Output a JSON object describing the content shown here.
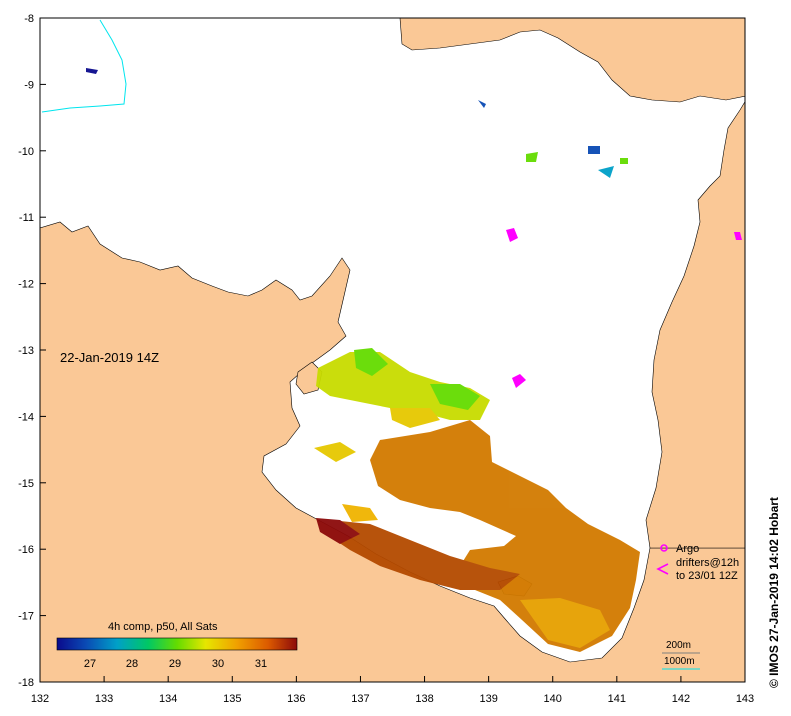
{
  "map": {
    "date_label": "22-Jan-2019 14Z",
    "lon_ticks": [
      "132",
      "133",
      "134",
      "135",
      "136",
      "137",
      "138",
      "139",
      "140",
      "141",
      "142",
      "143"
    ],
    "lat_ticks": [
      "-8",
      "-9",
      "-10",
      "-11",
      "-12",
      "-13",
      "-14",
      "-15",
      "-16",
      "-17",
      "-18"
    ],
    "credit": "© IMOS 27-Jan-2019 14:02 Hobart",
    "colorbar": {
      "title": "4h comp, p50, All Sats",
      "ticks": [
        "27",
        "28",
        "29",
        "30",
        "31"
      ]
    },
    "legend": {
      "argo": "Argo",
      "drifters": "drifters@12h",
      "drifters_to": "to 23/01 12Z",
      "isobath_200": "200m",
      "isobath_1000": "1000m"
    },
    "colors": {
      "land": "#fac896",
      "ocean": "#ffffff",
      "argo_drifter": "#ff00ff",
      "isobath": "#00e5ee"
    }
  }
}
